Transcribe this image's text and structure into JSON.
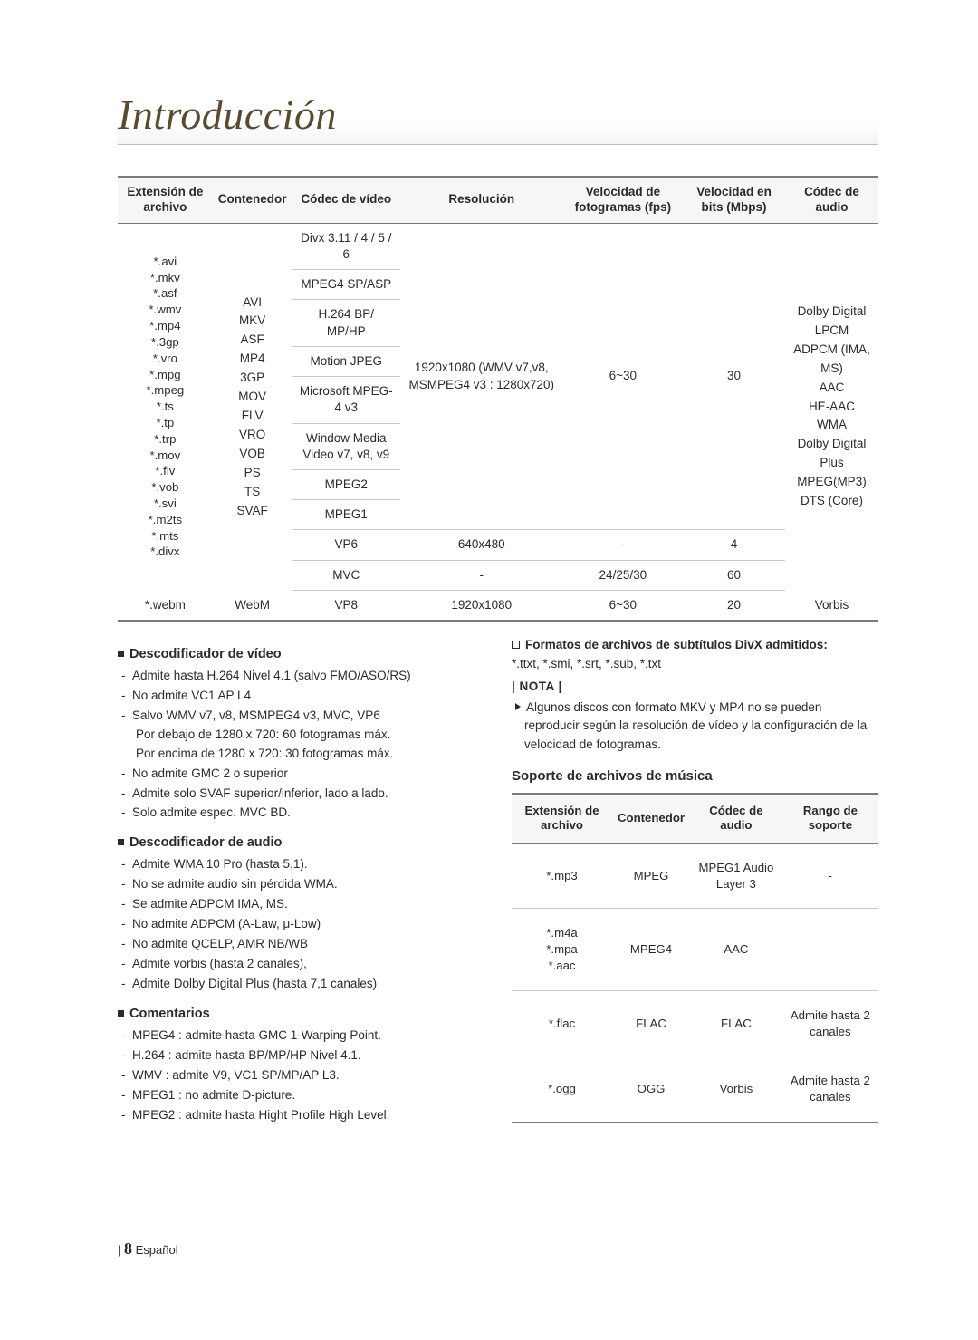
{
  "title": "Introducción",
  "video_table": {
    "headers": [
      "Extensión de archivo",
      "Contenedor",
      "Códec de vídeo",
      "Resolución",
      "Velocidad de fotogramas (fps)",
      "Velocidad en bits (Mbps)",
      "Códec de audio"
    ],
    "extensions": [
      "*.avi",
      "*.mkv",
      "*.asf",
      "*.wmv",
      "*.mp4",
      "*.3gp",
      "*.vro",
      "*.mpg",
      "*.mpeg",
      "*.ts",
      "*.tp",
      "*.trp",
      "*.mov",
      "*.flv",
      "*.vob",
      "*.svi",
      "*.m2ts",
      "*.mts",
      "*.divx"
    ],
    "containers": [
      "AVI",
      "MKV",
      "ASF",
      "MP4",
      "3GP",
      "MOV",
      "FLV",
      "VRO",
      "VOB",
      "PS",
      "TS",
      "SVAF"
    ],
    "video_codecs": [
      "Divx 3.11 / 4 / 5 / 6",
      "MPEG4 SP/ASP",
      "H.264 BP/ MP/HP",
      "Motion JPEG",
      "Microsoft MPEG-4 v3",
      "Window Media Video v7, v8, v9",
      "MPEG2",
      "MPEG1"
    ],
    "group1": {
      "resolution": "1920x1080 (WMV v7,v8, MSMPEG4 v3 : 1280x720)",
      "fps": "6~30",
      "bitrate": "30"
    },
    "vp6": {
      "codec": "VP6",
      "resolution": "640x480",
      "fps": "-",
      "bitrate": "4"
    },
    "mvc": {
      "codec": "MVC",
      "resolution": "-",
      "fps": "24/25/30",
      "bitrate": "60"
    },
    "webm": {
      "ext": "*.webm",
      "container": "WebM",
      "codec": "VP8",
      "resolution": "1920x1080",
      "fps": "6~30",
      "bitrate": "20",
      "audio": "Vorbis"
    },
    "audio_codecs": [
      "Dolby Digital",
      "LPCM",
      "ADPCM (IMA, MS)",
      "AAC",
      "HE-AAC",
      "WMA",
      "Dolby Digital Plus",
      "MPEG(MP3)",
      "DTS (Core)"
    ]
  },
  "left": {
    "h_video": "Descodificador de vídeo",
    "video_items": [
      "Admite hasta H.264 Nivel 4.1 (salvo FMO/ASO/RS)",
      "No admite VC1 AP L4",
      "Salvo WMV v7, v8, MSMPEG4 v3, MVC, VP6\nPor debajo de 1280 x 720: 60 fotogramas máx.\nPor encima de 1280 x 720: 30 fotogramas máx.",
      "No admite GMC 2 o superior",
      "Admite solo SVAF superior/inferior, lado a lado.",
      "Solo admite espec. MVC BD."
    ],
    "h_audio": "Descodificador de audio",
    "audio_items": [
      "Admite WMA 10 Pro (hasta 5,1).",
      "No se admite audio sin pérdida WMA.",
      "Se admite ADPCM IMA, MS.",
      "No admite ADPCM (A-Law, μ-Low)",
      "No admite QCELP, AMR NB/WB",
      "Admite vorbis (hasta 2 canales),",
      "Admite Dolby Digital Plus (hasta 7,1 canales)"
    ],
    "h_comments": "Comentarios",
    "comment_items": [
      "MPEG4 : admite hasta GMC 1-Warping Point.",
      "H.264 : admite hasta BP/MP/HP Nivel 4.1.",
      "WMV : admite V9, VC1 SP/MP/AP L3.",
      "MPEG1 : no admite D-picture.",
      "MPEG2 : admite hasta Hight Profile High Level."
    ]
  },
  "right": {
    "subtitle_formats_title": "Formatos de archivos de subtítulos DivX admitidos:",
    "subtitle_formats": "*.ttxt, *.smi, *.srt, *.sub, *.txt",
    "nota_label": "| NOTA |",
    "nota_body": "Algunos discos con formato MKV y MP4 no se pueden reproducir según la resolución de vídeo y la configuración de la velocidad de fotogramas.",
    "music_title": "Soporte de archivos de música",
    "music_headers": [
      "Extensión de archivo",
      "Contenedor",
      "Códec de audio",
      "Rango de soporte"
    ],
    "music_rows": [
      {
        "ext": "*.mp3",
        "container": "MPEG",
        "codec": "MPEG1 Audio Layer 3",
        "range": "-"
      },
      {
        "ext": "*.m4a\n*.mpa\n*.aac",
        "container": "MPEG4",
        "codec": "AAC",
        "range": "-"
      },
      {
        "ext": "*.flac",
        "container": "FLAC",
        "codec": "FLAC",
        "range": "Admite hasta 2 canales"
      },
      {
        "ext": "*.ogg",
        "container": "OGG",
        "codec": "Vorbis",
        "range": "Admite hasta 2 canales"
      }
    ]
  },
  "footer": {
    "page": "8",
    "lang": "Español"
  },
  "colors": {
    "accent": "#5c4a2e",
    "rule": "#7a7a7a",
    "light_rule": "#c8c8c8",
    "th_bg": "#f6f6f6",
    "text": "#2b2b2b"
  }
}
